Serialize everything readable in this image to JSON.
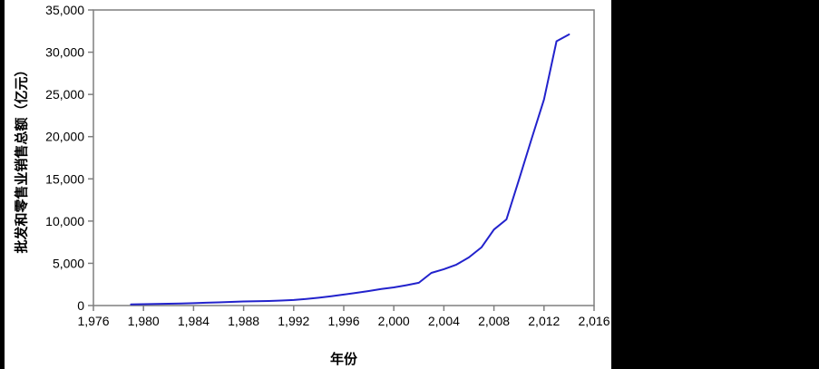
{
  "window": {
    "background_color": "#ffffff",
    "left_bar_color": "#000000",
    "right_bar_color": "#000000"
  },
  "chart_data": {
    "type": "line",
    "title": "",
    "xlabel": "年份",
    "ylabel": "批发和零售业销售总额（亿元）",
    "xlim": [
      1976,
      2016
    ],
    "ylim": [
      0,
      35000
    ],
    "grid": false,
    "legend_position": "none",
    "line_color": "#2222cc",
    "axis_color": "#7f7f7f",
    "tick_label_color": "#000000",
    "xticks": [
      1976,
      1980,
      1984,
      1988,
      1992,
      1996,
      2000,
      2004,
      2008,
      2012,
      2016
    ],
    "xtick_labels": [
      "1,976",
      "1,980",
      "1,984",
      "1,988",
      "1,992",
      "1,996",
      "2,000",
      "2,004",
      "2,008",
      "2,012",
      "2,016"
    ],
    "yticks": [
      0,
      5000,
      10000,
      15000,
      20000,
      25000,
      30000,
      35000
    ],
    "ytick_labels": [
      "0",
      "5,000",
      "10,000",
      "15,000",
      "20,000",
      "25,000",
      "30,000",
      "35,000"
    ],
    "series": [
      {
        "name": "批发和零售业销售总额",
        "x": [
          1979,
          1980,
          1981,
          1982,
          1983,
          1984,
          1985,
          1986,
          1987,
          1988,
          1989,
          1990,
          1991,
          1992,
          1993,
          1994,
          1995,
          1996,
          1997,
          1998,
          1999,
          2000,
          2001,
          2002,
          2003,
          2004,
          2005,
          2006,
          2007,
          2008,
          2009,
          2010,
          2011,
          2012,
          2013,
          2014
        ],
        "values": [
          130,
          160,
          190,
          210,
          240,
          280,
          330,
          380,
          430,
          480,
          510,
          540,
          590,
          650,
          780,
          920,
          1100,
          1300,
          1500,
          1720,
          1950,
          2150,
          2400,
          2700,
          3870,
          4300,
          4840,
          5700,
          6880,
          9000,
          10200,
          14900,
          19700,
          24400,
          31300,
          32100
        ]
      }
    ]
  }
}
